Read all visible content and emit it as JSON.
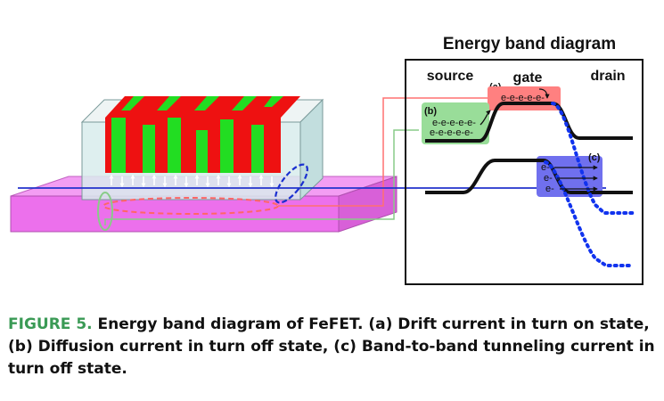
{
  "band_diagram": {
    "title": "Energy band diagram",
    "region_labels": {
      "source": "source",
      "gate": "gate",
      "drain": "drain"
    },
    "markers": {
      "a": "(a)",
      "b": "(b)",
      "c": "(c)"
    },
    "electrons_gate": "e-e-e-e-e-",
    "electrons_source_row1": "e-e-e-e-e-",
    "electrons_source_row2": "e-e-e-e-e-",
    "electrons_tunnel": [
      "e-",
      "e-",
      "e-"
    ]
  },
  "caption": {
    "label": "FIGURE 5.",
    "text": "Energy band diagram of FeFET. (a) Drift current in turn on state, (b) Diffusion current in turn off state, (c) Band-to-band tunneling current in turn off state."
  },
  "colors": {
    "channel": "#f07cf0",
    "ferro_red": "#ee1111",
    "ferro_green": "#22dd22",
    "gate_box": "#ff8080",
    "source_box": "#99dd99",
    "tunnel_box": "#7070ee",
    "conduction_path": "#2233cc",
    "dotted_band": "#1133ee",
    "caption_label": "#3a9a55"
  }
}
